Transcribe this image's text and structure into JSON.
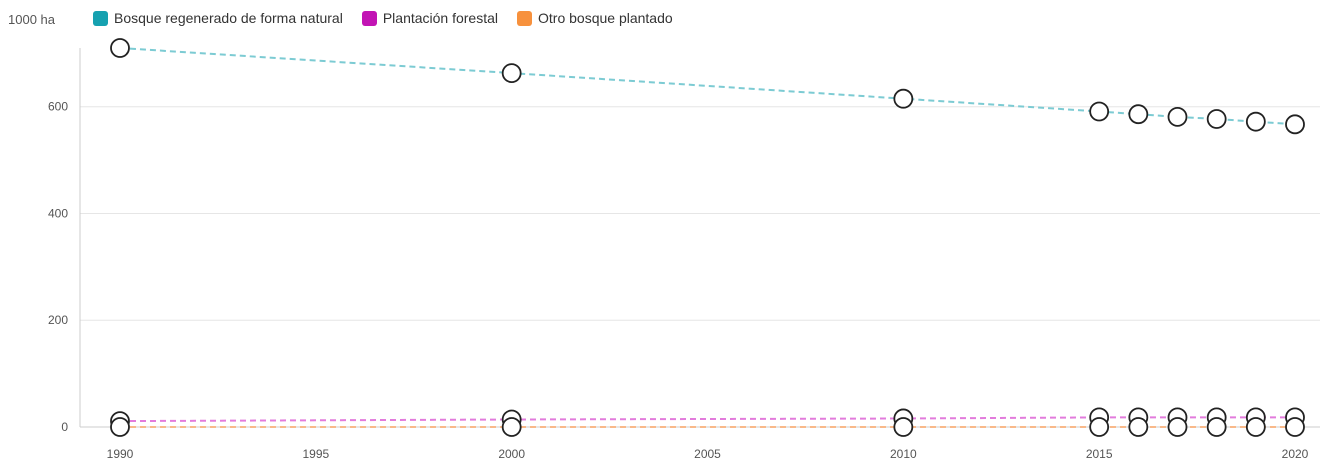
{
  "chart_data": {
    "type": "line",
    "unit_label": "1000 ha",
    "x": [
      1990,
      2000,
      2010,
      2015,
      2016,
      2017,
      2018,
      2019,
      2020
    ],
    "xticks": [
      1990,
      1995,
      2000,
      2005,
      2010,
      2015,
      2020
    ],
    "xlim": [
      1990,
      2020
    ],
    "yticks": [
      0,
      200,
      400,
      600
    ],
    "ylim": [
      0,
      710
    ],
    "grid": "horizontal",
    "legend_position": "top-left",
    "series": [
      {
        "name": "Bosque regenerado de forma natural",
        "color": "#16a1b0",
        "line_color": "#7ccbd3",
        "values": [
          710,
          663,
          615,
          591,
          586,
          581,
          577,
          572,
          567
        ]
      },
      {
        "name": "Plantación forestal",
        "color": "#c214b4",
        "line_color": "#e27bdc",
        "values": [
          11,
          14,
          16,
          18,
          18,
          18,
          18,
          18,
          18
        ]
      },
      {
        "name": "Otro bosque plantado",
        "color": "#f7913d",
        "line_color": "#f9b98a",
        "values": [
          0,
          0,
          0,
          0,
          0,
          0,
          0,
          0,
          0
        ]
      }
    ]
  }
}
